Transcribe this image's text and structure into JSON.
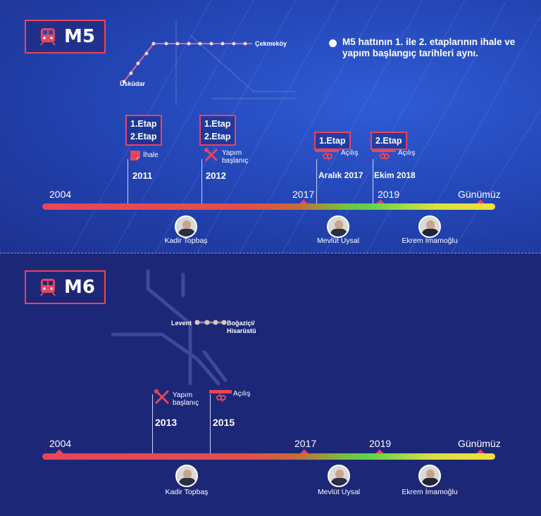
{
  "top": {
    "line_name": "M5",
    "note": "M5 hattının 1. ile 2. etaplarının ihale ve yapım başlangıç tarihleri aynı.",
    "map": {
      "start_station": "Üsküdar",
      "end_station": "Çekmeköy"
    },
    "years": [
      "2004",
      "2017",
      "2019",
      "Günümüz"
    ],
    "events": [
      {
        "etap_lines": [
          "1.Etap",
          "2.Etap"
        ],
        "label": "İhale",
        "year": "2011"
      },
      {
        "etap_lines": [
          "1.Etap",
          "2.Etap"
        ],
        "label": "Yapım başlanıç",
        "year": "2012"
      },
      {
        "etap_lines": [
          "1.Etap"
        ],
        "label": "Açılış",
        "year": "Aralık 2017"
      },
      {
        "etap_lines": [
          "2.Etap"
        ],
        "label": "Açılış",
        "year": "Ekim 2018"
      }
    ],
    "mayors": [
      "Kadir Topbaş",
      "Mevlüt Uysal",
      "Ekrem İmamoğlu"
    ]
  },
  "bottom": {
    "line_name": "M6",
    "map": {
      "start_station": "Levent",
      "end_station": "Boğaziçi/ Hisarüstü"
    },
    "years": [
      "2004",
      "2017",
      "2019",
      "Günümüz"
    ],
    "events": [
      {
        "label": "Yapım başlanıç",
        "year": "2013"
      },
      {
        "label": "Açılış",
        "year": "2015"
      }
    ],
    "mayors": [
      "Kadir Topbaş",
      "Mevlüt Uysal",
      "Ekrem İmamoğlu"
    ]
  },
  "colors": {
    "accent": "#e8455a",
    "top_bg": "#2447b8",
    "bottom_bg": "#1c2778"
  }
}
